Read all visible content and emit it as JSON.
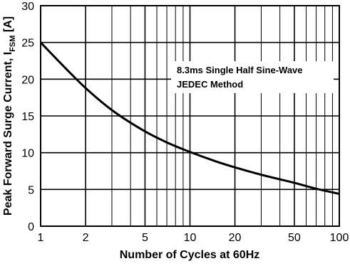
{
  "chart_data": {
    "type": "line",
    "title": "",
    "xlabel": "Number of Cycles at 60Hz",
    "ylabel": {
      "main": "Peak Forward Surge Current, I",
      "subscript": "FSM",
      "unit": " [A]"
    },
    "x_scale": "log",
    "xlim": [
      1,
      100
    ],
    "ylim": [
      0,
      30
    ],
    "x_ticks": [
      {
        "value": 1,
        "label": "1"
      },
      {
        "value": 2,
        "label": "2"
      },
      {
        "value": 5,
        "label": "5"
      },
      {
        "value": 10,
        "label": "10"
      },
      {
        "value": 20,
        "label": "20"
      },
      {
        "value": 50,
        "label": "50"
      },
      {
        "value": 100,
        "label": "100"
      }
    ],
    "x_minor_grid": [
      3,
      4,
      6,
      7,
      8,
      9,
      30,
      40,
      60,
      70,
      80,
      90
    ],
    "y_ticks": [
      {
        "value": 0,
        "label": "0"
      },
      {
        "value": 5,
        "label": "5"
      },
      {
        "value": 10,
        "label": "10"
      },
      {
        "value": 15,
        "label": "15"
      },
      {
        "value": 20,
        "label": "20"
      },
      {
        "value": 25,
        "label": "25"
      },
      {
        "value": 30,
        "label": "30"
      }
    ],
    "grid": true,
    "series": [
      {
        "x": [
          1,
          1.5,
          2,
          3,
          5,
          7,
          10,
          15,
          20,
          30,
          50,
          70,
          100
        ],
        "y": [
          25,
          21.3,
          18.8,
          15.8,
          12.9,
          11.4,
          10.1,
          8.8,
          8.0,
          7.0,
          5.9,
          5.1,
          4.4
        ]
      }
    ],
    "annotation": {
      "lines": [
        "8.3ms Single Half Sine-Wave",
        "JEDEC Method"
      ],
      "x": 10,
      "y": 21.3
    },
    "colors": {
      "line": "#000000",
      "grid": "#000000",
      "background": "#ffffff"
    }
  }
}
